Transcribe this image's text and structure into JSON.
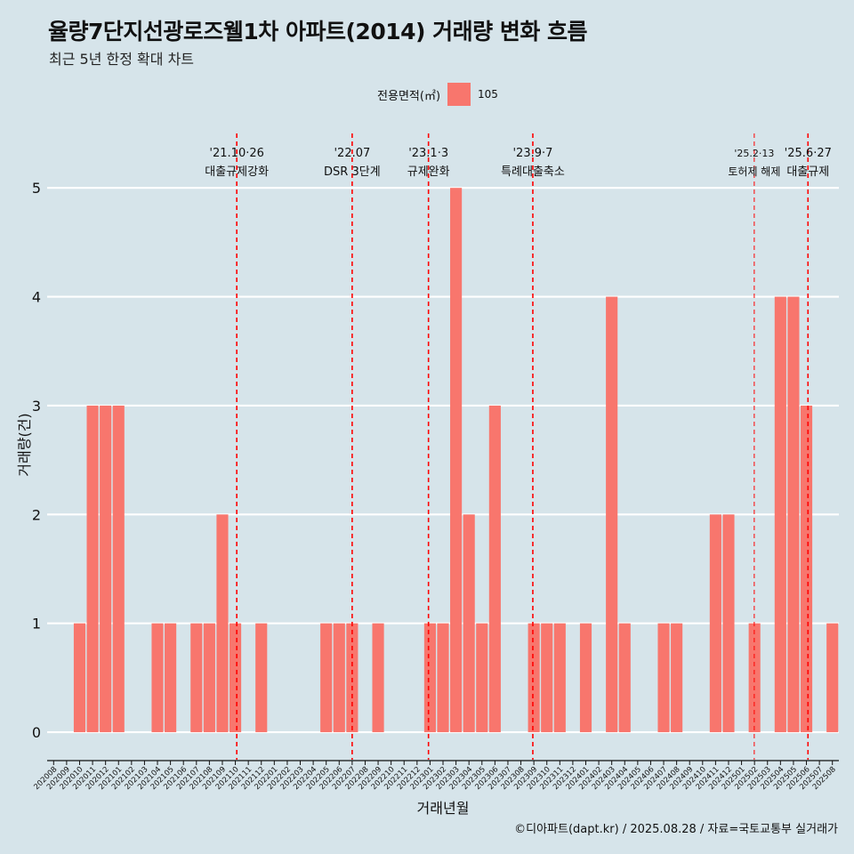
{
  "page": {
    "title": "율량7단지선광로즈웰1차 아파트(2014) 거래량 변화 흐름",
    "subtitle": "최근 5년 한정 확대 차트",
    "caption": "©디아파트(dapt.kr) / 2025.08.28 / 자료=국토교통부 실거래가"
  },
  "legend": {
    "title": "전용면적(㎡)",
    "label": "105",
    "color": "#f8766d"
  },
  "chart_data": {
    "type": "bar",
    "title": "율량7단지선광로즈웰1차 아파트(2014) 거래량 변화 흐름",
    "subtitle": "최근 5년 한정 확대 차트",
    "xlabel": "거래년월",
    "ylabel": "거래량(건)",
    "ylim": [
      -0.22,
      5.5
    ],
    "yticks": [
      0,
      1,
      2,
      3,
      4,
      5
    ],
    "categories": [
      "202008",
      "202009",
      "202010",
      "202011",
      "202012",
      "202101",
      "202102",
      "202103",
      "202104",
      "202105",
      "202106",
      "202107",
      "202108",
      "202109",
      "202110",
      "202111",
      "202112",
      "202201",
      "202202",
      "202203",
      "202204",
      "202205",
      "202206",
      "202207",
      "202208",
      "202209",
      "202210",
      "202211",
      "202212",
      "202301",
      "202302",
      "202303",
      "202304",
      "202305",
      "202306",
      "202307",
      "202308",
      "202309",
      "202310",
      "202311",
      "202312",
      "202401",
      "202402",
      "202403",
      "202404",
      "202405",
      "202406",
      "202407",
      "202408",
      "202409",
      "202410",
      "202411",
      "202412",
      "202501",
      "202502",
      "202503",
      "202504",
      "202505",
      "202506",
      "202507",
      "202508"
    ],
    "series": [
      {
        "name": "105",
        "color": "#f8766d",
        "values": [
          0,
          0,
          1,
          3,
          3,
          3,
          0,
          0,
          1,
          1,
          0,
          1,
          1,
          2,
          1,
          0,
          1,
          0,
          0,
          0,
          0,
          1,
          1,
          1,
          0,
          1,
          0,
          0,
          0,
          1,
          1,
          5,
          2,
          1,
          3,
          0,
          0,
          1,
          1,
          1,
          0,
          1,
          0,
          4,
          1,
          0,
          0,
          1,
          1,
          0,
          0,
          2,
          2,
          0,
          1,
          0,
          4,
          4,
          3,
          0,
          1
        ]
      }
    ],
    "grid": true,
    "legend_position": "top",
    "annotations": [
      {
        "date": "'21.10·26",
        "label": "대출규제강화",
        "month": "202110",
        "day": 26,
        "style": "bold"
      },
      {
        "date": "'22.07",
        "label": "DSR 3단계",
        "month": "202207",
        "day": 15,
        "style": "bold"
      },
      {
        "date": "'23.1·3",
        "label": "규제완화",
        "month": "202301",
        "day": 3,
        "style": "bold"
      },
      {
        "date": "'23.9·7",
        "label": "특례대출축소",
        "month": "202309",
        "day": 7,
        "style": "bold"
      },
      {
        "date": "'25.2·13",
        "label": "토허제 해제",
        "month": "202502",
        "day": 13,
        "style": "thin"
      },
      {
        "date": "'25.6·27",
        "label": "대출규제",
        "month": "202506",
        "day": 27,
        "style": "bold"
      }
    ],
    "annotation_color": "#ff0000"
  }
}
